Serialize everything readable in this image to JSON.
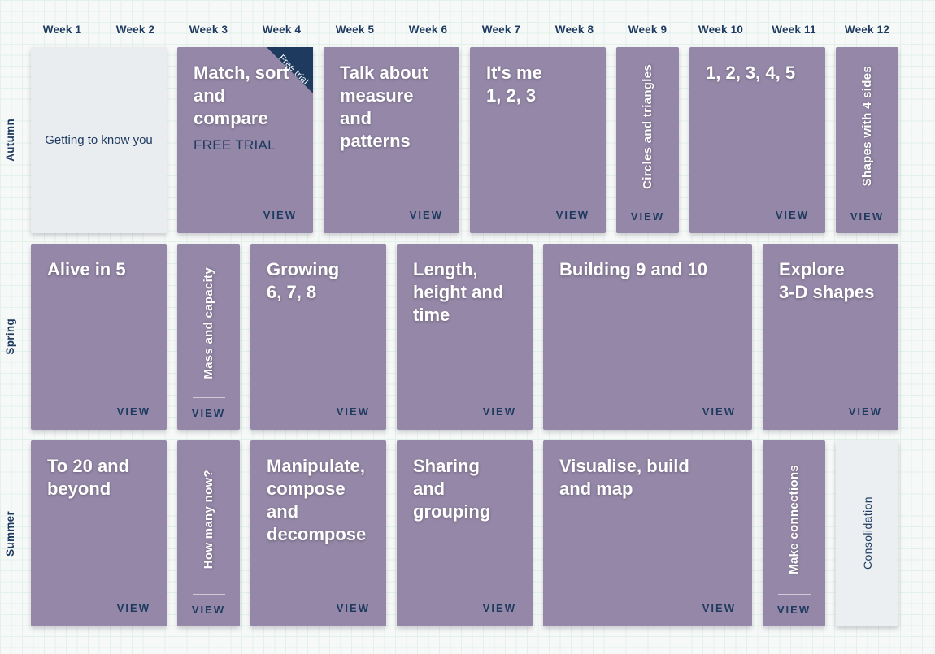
{
  "colors": {
    "background": "#f7f9f8",
    "grid_line": "#e3f1eb",
    "card_purple": "#9487a7",
    "card_plain": "#e9edf0",
    "navy": "#1e3a5f",
    "title_white": "#ffffff"
  },
  "week_headers": [
    "Week 1",
    "Week 2",
    "Week 3",
    "Week 4",
    "Week 5",
    "Week 6",
    "Week 7",
    "Week 8",
    "Week 9",
    "Week 10",
    "Week 11",
    "Week 12"
  ],
  "rows": [
    {
      "season": "Autumn",
      "cards": [
        {
          "variant": "plain",
          "span": 2,
          "title_lines": [
            "Getting to know you"
          ]
        },
        {
          "variant": "purple",
          "span": 2,
          "title_lines": [
            "Match, sort",
            "and",
            "compare"
          ],
          "subtitle": "FREE TRIAL",
          "ribbon": "Free trial",
          "view_label": "VIEW"
        },
        {
          "variant": "purple",
          "span": 2,
          "title_lines": [
            "Talk about",
            "measure",
            "and patterns"
          ],
          "view_label": "VIEW"
        },
        {
          "variant": "purple",
          "span": 2,
          "title_lines": [
            "It's me",
            "1, 2, 3"
          ],
          "view_label": "VIEW"
        },
        {
          "variant": "purple-vertical",
          "span": 1,
          "title_lines": [
            "Circles and triangles"
          ],
          "view_label": "VIEW"
        },
        {
          "variant": "purple",
          "span": 2,
          "title_lines": [
            "1, 2, 3, 4, 5"
          ],
          "view_label": "VIEW"
        },
        {
          "variant": "purple-vertical",
          "span": 1,
          "title_lines": [
            "Shapes with 4 sides"
          ],
          "view_label": "VIEW"
        }
      ]
    },
    {
      "season": "Spring",
      "cards": [
        {
          "variant": "purple",
          "span": 2,
          "title_lines": [
            "Alive in 5"
          ],
          "view_label": "VIEW"
        },
        {
          "variant": "purple-vertical",
          "span": 1,
          "title_lines": [
            "Mass and capacity"
          ],
          "view_label": "VIEW"
        },
        {
          "variant": "purple",
          "span": 2,
          "title_lines": [
            "Growing",
            "6, 7, 8"
          ],
          "view_label": "VIEW"
        },
        {
          "variant": "purple",
          "span": 2,
          "title_lines": [
            "Length,",
            "height and",
            "time"
          ],
          "view_label": "VIEW"
        },
        {
          "variant": "purple",
          "span": 3,
          "title_lines": [
            "Building 9 and 10"
          ],
          "view_label": "VIEW"
        },
        {
          "variant": "purple",
          "span": 2,
          "title_lines": [
            "Explore",
            "3-D shapes"
          ],
          "view_label": "VIEW"
        }
      ]
    },
    {
      "season": "Summer",
      "cards": [
        {
          "variant": "purple",
          "span": 2,
          "title_lines": [
            "To 20 and",
            "beyond"
          ],
          "view_label": "VIEW"
        },
        {
          "variant": "purple-vertical",
          "span": 1,
          "title_lines": [
            "How many now?"
          ],
          "view_label": "VIEW"
        },
        {
          "variant": "purple",
          "span": 2,
          "title_lines": [
            "Manipulate,",
            "compose",
            "and",
            "decompose"
          ],
          "view_label": "VIEW"
        },
        {
          "variant": "purple",
          "span": 2,
          "title_lines": [
            "Sharing and",
            "grouping"
          ],
          "view_label": "VIEW"
        },
        {
          "variant": "purple",
          "span": 3,
          "title_lines": [
            "Visualise, build",
            "and map"
          ],
          "view_label": "VIEW"
        },
        {
          "variant": "purple-vertical",
          "span": 1,
          "title_lines": [
            "Make connections"
          ],
          "view_label": "VIEW"
        },
        {
          "variant": "plain-vertical",
          "span": 1,
          "title_lines": [
            "Consolidation"
          ]
        }
      ]
    }
  ]
}
